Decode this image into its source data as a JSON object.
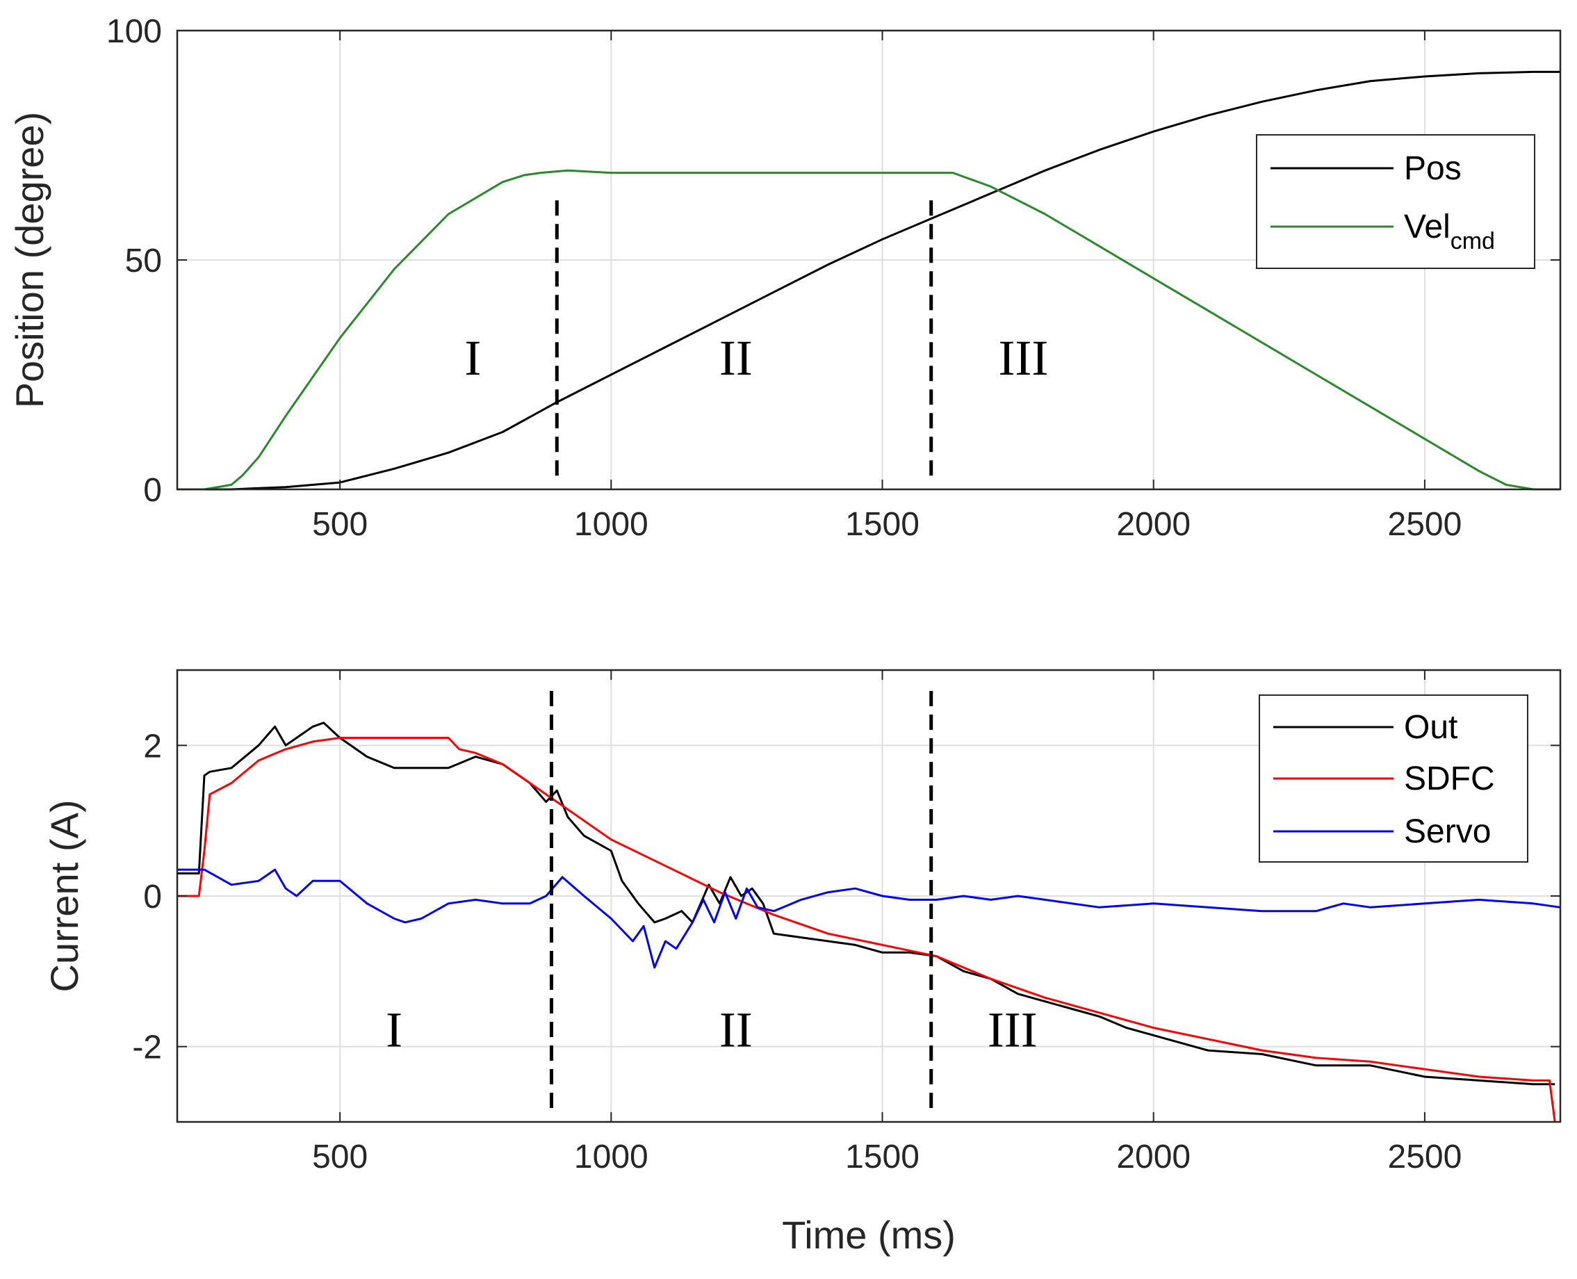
{
  "chart_data": [
    {
      "type": "line",
      "title": "",
      "xlabel": "",
      "ylabel": "Position (degree)",
      "xlim": [
        200,
        2750
      ],
      "ylim": [
        0,
        100
      ],
      "xticks": [
        500,
        1000,
        1500,
        2000,
        2500
      ],
      "yticks": [
        0,
        50,
        100
      ],
      "xtick_labels": [
        "500",
        "1000",
        "1500",
        "2000",
        "2500"
      ],
      "ytick_labels": [
        "0",
        "50",
        "100"
      ],
      "grid": true,
      "legend_position": "top-right",
      "series": [
        {
          "name": "Pos",
          "name_base": "Pos",
          "name_sub": "",
          "color": "#000000",
          "x": [
            200,
            300,
            400,
            500,
            600,
            700,
            800,
            900,
            1000,
            1100,
            1200,
            1300,
            1400,
            1500,
            1600,
            1700,
            1800,
            1900,
            2000,
            2100,
            2200,
            2300,
            2400,
            2500,
            2600,
            2700,
            2750
          ],
          "y": [
            0,
            0,
            0.5,
            1.5,
            4.5,
            8,
            12.5,
            19,
            25,
            31,
            37,
            43,
            49,
            54.5,
            59.5,
            64.5,
            69.5,
            74,
            78,
            81.5,
            84.5,
            87,
            89,
            90,
            90.7,
            91,
            91
          ]
        },
        {
          "name": "Velcmd",
          "name_base": "Vel",
          "name_sub": "cmd",
          "color": "#2a8a2a",
          "x": [
            200,
            250,
            300,
            320,
            350,
            400,
            500,
            600,
            700,
            800,
            840,
            870,
            920,
            1000,
            1200,
            1400,
            1600,
            1630,
            1700,
            1800,
            1900,
            2000,
            2100,
            2200,
            2300,
            2400,
            2500,
            2600,
            2650,
            2700,
            2750
          ],
          "y": [
            0,
            0,
            1,
            3,
            7,
            16,
            33,
            48,
            60,
            67,
            68.5,
            69,
            69.5,
            69,
            69,
            69,
            69,
            69,
            66,
            60,
            53,
            46,
            39,
            32,
            25,
            18,
            11,
            4,
            1,
            0,
            0
          ]
        }
      ],
      "vlines": [
        900,
        1590
      ],
      "annotations": [
        {
          "text": "I",
          "x": 745,
          "y": 25
        },
        {
          "text": "II",
          "x": 1230,
          "y": 25
        },
        {
          "text": "III",
          "x": 1760,
          "y": 25
        }
      ]
    },
    {
      "type": "line",
      "title": "",
      "xlabel": "Time (ms)",
      "ylabel": "Current (A)",
      "xlim": [
        200,
        2750
      ],
      "ylim": [
        -3,
        3
      ],
      "xticks": [
        500,
        1000,
        1500,
        2000,
        2500
      ],
      "yticks": [
        -2,
        0,
        2
      ],
      "xtick_labels": [
        "500",
        "1000",
        "1500",
        "2000",
        "2500"
      ],
      "ytick_labels": [
        "-2",
        "0",
        "2"
      ],
      "grid": true,
      "legend_position": "top-right",
      "series": [
        {
          "name": "Out",
          "color": "#000000",
          "x": [
            200,
            240,
            250,
            260,
            300,
            350,
            380,
            400,
            420,
            450,
            470,
            500,
            550,
            600,
            650,
            700,
            750,
            800,
            850,
            880,
            900,
            920,
            950,
            1000,
            1020,
            1050,
            1080,
            1100,
            1130,
            1150,
            1180,
            1200,
            1220,
            1240,
            1260,
            1280,
            1300,
            1350,
            1400,
            1450,
            1500,
            1550,
            1600,
            1650,
            1700,
            1750,
            1800,
            1850,
            1900,
            1950,
            2000,
            2100,
            2200,
            2300,
            2400,
            2500,
            2600,
            2700,
            2730,
            2740
          ],
          "y": [
            0.3,
            0.3,
            1.6,
            1.65,
            1.7,
            2.0,
            2.25,
            2.0,
            2.1,
            2.25,
            2.3,
            2.1,
            1.85,
            1.7,
            1.7,
            1.7,
            1.85,
            1.75,
            1.5,
            1.25,
            1.4,
            1.05,
            0.8,
            0.6,
            0.2,
            -0.1,
            -0.35,
            -0.3,
            -0.2,
            -0.35,
            0.15,
            -0.1,
            0.25,
            0.0,
            0.1,
            -0.1,
            -0.5,
            -0.55,
            -0.6,
            -0.65,
            -0.75,
            -0.75,
            -0.8,
            -1.0,
            -1.1,
            -1.3,
            -1.4,
            -1.5,
            -1.6,
            -1.75,
            -1.85,
            -2.05,
            -2.1,
            -2.25,
            -2.25,
            -2.4,
            -2.45,
            -2.5,
            -2.5,
            -2.5
          ]
        },
        {
          "name": "SDFC",
          "color": "#ff0000",
          "x": [
            200,
            240,
            250,
            260,
            300,
            350,
            400,
            450,
            500,
            550,
            600,
            650,
            700,
            720,
            750,
            800,
            850,
            900,
            950,
            1000,
            1100,
            1200,
            1300,
            1400,
            1500,
            1600,
            1700,
            1800,
            1900,
            2000,
            2100,
            2200,
            2300,
            2400,
            2500,
            2600,
            2700,
            2730,
            2740
          ],
          "y": [
            0.0,
            0.0,
            0.6,
            1.35,
            1.5,
            1.8,
            1.95,
            2.05,
            2.1,
            2.1,
            2.1,
            2.1,
            2.1,
            1.95,
            1.9,
            1.75,
            1.5,
            1.25,
            1.0,
            0.75,
            0.4,
            0.05,
            -0.25,
            -0.5,
            -0.65,
            -0.8,
            -1.1,
            -1.35,
            -1.55,
            -1.75,
            -1.9,
            -2.05,
            -2.15,
            -2.2,
            -2.3,
            -2.4,
            -2.45,
            -2.45,
            -3.0
          ]
        },
        {
          "name": "Servo",
          "color": "#0000ff",
          "x": [
            200,
            250,
            300,
            350,
            380,
            400,
            420,
            450,
            500,
            550,
            600,
            620,
            650,
            700,
            750,
            800,
            850,
            880,
            910,
            950,
            1000,
            1040,
            1060,
            1080,
            1100,
            1120,
            1150,
            1170,
            1190,
            1210,
            1230,
            1250,
            1270,
            1300,
            1350,
            1400,
            1450,
            1500,
            1550,
            1600,
            1650,
            1700,
            1750,
            1800,
            1900,
            2000,
            2100,
            2200,
            2300,
            2350,
            2400,
            2500,
            2600,
            2700,
            2750
          ],
          "y": [
            0.35,
            0.35,
            0.15,
            0.2,
            0.35,
            0.1,
            0.0,
            0.2,
            0.2,
            -0.1,
            -0.3,
            -0.35,
            -0.3,
            -0.1,
            -0.05,
            -0.1,
            -0.1,
            0.0,
            0.25,
            0.0,
            -0.3,
            -0.6,
            -0.4,
            -0.95,
            -0.6,
            -0.7,
            -0.35,
            -0.05,
            -0.35,
            0.05,
            -0.3,
            0.1,
            -0.15,
            -0.2,
            -0.05,
            0.05,
            0.1,
            0.0,
            -0.05,
            -0.05,
            0.0,
            -0.05,
            0.0,
            -0.05,
            -0.15,
            -0.1,
            -0.15,
            -0.2,
            -0.2,
            -0.1,
            -0.15,
            -0.1,
            -0.05,
            -0.1,
            -0.15
          ]
        }
      ],
      "vlines": [
        890,
        1590
      ],
      "annotations": [
        {
          "text": "I",
          "x": 600,
          "y": -2.0
        },
        {
          "text": "II",
          "x": 1230,
          "y": -2.0
        },
        {
          "text": "III",
          "x": 1740,
          "y": -2.0
        }
      ]
    }
  ]
}
